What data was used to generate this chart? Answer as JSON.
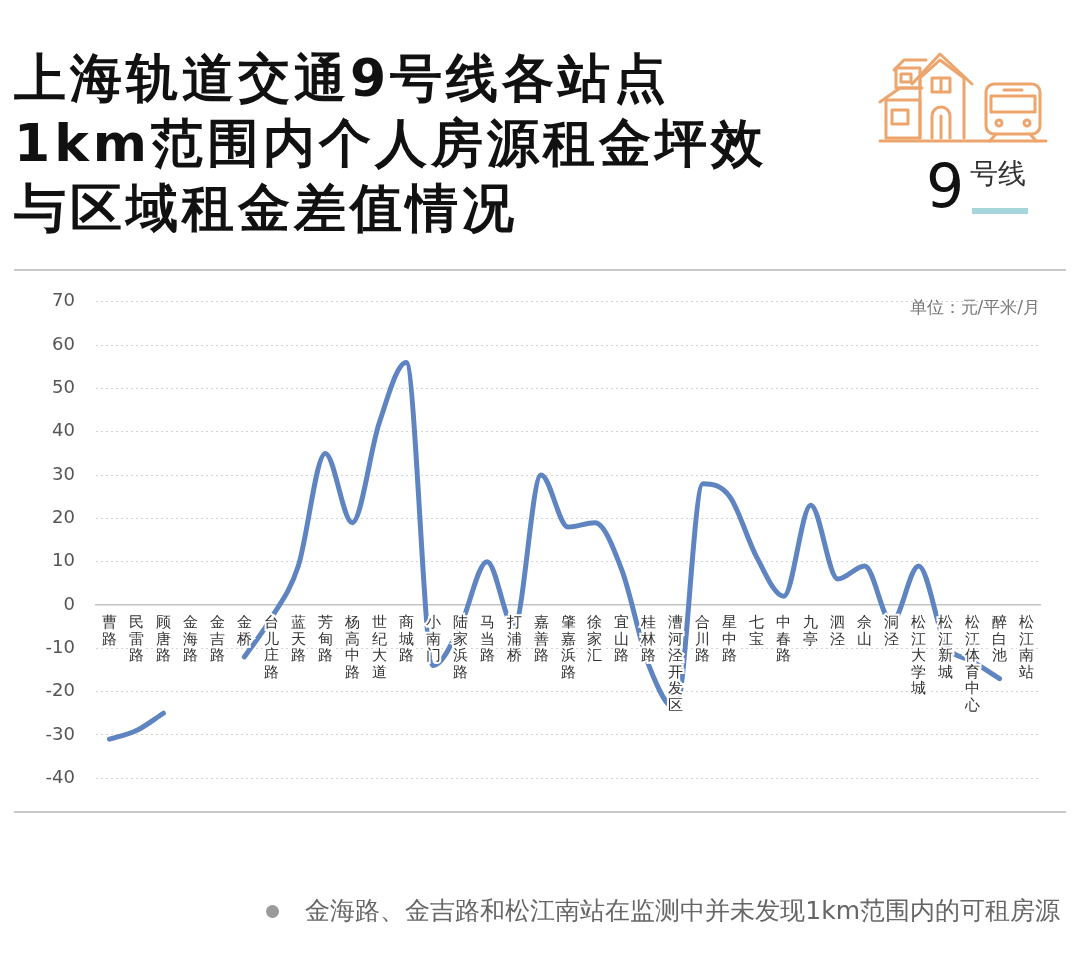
{
  "chart_data": {
    "type": "line",
    "title": "上海轨道交通9号线各站点1km范围内个人房源租金坪效与区域租金差值情况",
    "ylabel": "单位：元/平米/月",
    "annotations": [
      "9号线",
      "金海路、金吉路和松江南站在监测中并未发现1km范围内的可租房源"
    ],
    "categories": [
      "曹路",
      "民雷路",
      "顾唐路",
      "金海路",
      "金吉路",
      "金桥",
      "台儿庄路",
      "蓝天路",
      "芳甸路",
      "杨高中路",
      "世纪大道",
      "商城路",
      "小南门",
      "陆家浜路",
      "马当路",
      "打浦桥",
      "嘉善路",
      "肇嘉浜路",
      "徐家汇",
      "宜山路",
      "桂林路",
      "漕河泾开发区",
      "合川路",
      "星中路",
      "七宝",
      "中春路",
      "九亭",
      "泗泾",
      "佘山",
      "洞泾",
      "松江大学城",
      "松江新城",
      "松江体育中心",
      "醉白池",
      "松江南站"
    ],
    "series": [
      {
        "color": "#5f84c2",
        "values": [
          -31,
          -29,
          -25,
          null,
          null,
          -12,
          -3,
          9,
          35,
          19,
          42,
          56,
          -14,
          -5,
          10,
          -5,
          30,
          18,
          19,
          8,
          -14,
          -24,
          28,
          25,
          11,
          2,
          23,
          6,
          9,
          -4,
          9,
          -9,
          -13,
          -17,
          null
        ]
      }
    ],
    "ylim": [
      -40,
      70
    ],
    "yticks": [
      -40,
      -30,
      -20,
      -10,
      0,
      10,
      20,
      30,
      40,
      50,
      60,
      70
    ],
    "grid": "y",
    "marker": "none",
    "line_style": "solid"
  }
}
